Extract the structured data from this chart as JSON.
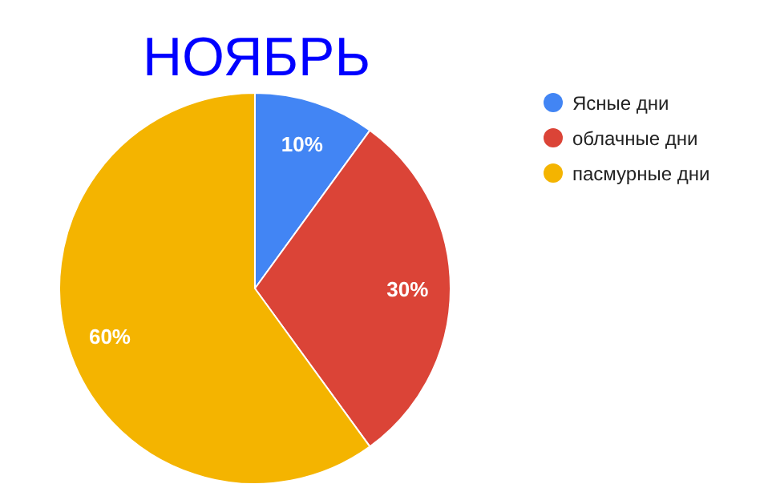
{
  "chart_data": {
    "type": "pie",
    "title": "НОЯБРЬ",
    "categories": [
      "Ясные дни",
      "облачные дни",
      "пасмурные дни"
    ],
    "values": [
      10,
      30,
      60
    ],
    "colors": [
      "#4285f4",
      "#db4437",
      "#f4b400"
    ],
    "value_labels": [
      "10%",
      "30%",
      "60%"
    ],
    "legend": "right"
  }
}
